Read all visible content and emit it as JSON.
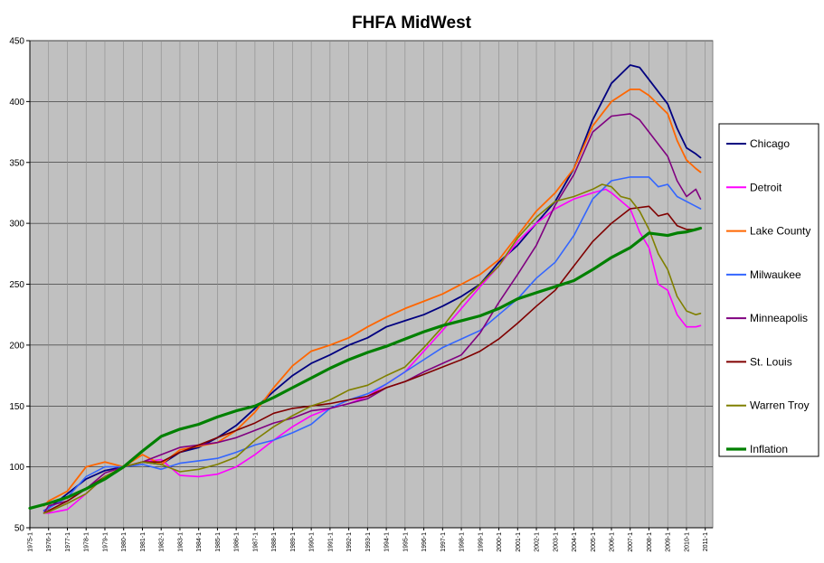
{
  "chart_data": {
    "type": "line",
    "title": "FHFA MidWest",
    "xlabel": "",
    "ylabel": "",
    "ylim": [
      50,
      450
    ],
    "y_ticks": [
      50,
      100,
      150,
      200,
      250,
      300,
      350,
      400,
      450
    ],
    "x_tick_labels": [
      "1975-1",
      "1976-1",
      "1977-1",
      "1978-1",
      "1979-1",
      "1980-1",
      "1981-1",
      "1982-1",
      "1983-1",
      "1984-1",
      "1985-1",
      "1986-1",
      "1987-1",
      "1988-1",
      "1989-1",
      "1990-1",
      "1991-1",
      "1992-1",
      "1993-1",
      "1994-1",
      "1995-1",
      "1996-1",
      "1997-1",
      "1998-1",
      "1999-1",
      "2000-1",
      "2001-1",
      "2002-1",
      "2003-1",
      "2004-1",
      "2005-1",
      "2006-1",
      "2007-1",
      "2008-1",
      "2009-1",
      "2010-1",
      "2011-1"
    ],
    "xlim": [
      1975.0,
      2011.4
    ],
    "grid": true,
    "legend_position": "right",
    "background_color": "#c0c0c0",
    "series": [
      {
        "name": "Chicago",
        "color": "#000080",
        "width": 1.8,
        "x": [
          1975.75,
          1976,
          1977,
          1978,
          1979,
          1980,
          1981,
          1982,
          1983,
          1984,
          1985,
          1986,
          1987,
          1988,
          1989,
          1990,
          1991,
          1992,
          1993,
          1994,
          1995,
          1996,
          1997,
          1998,
          1999,
          2000,
          2001,
          2002,
          2003,
          2004,
          2005,
          2006,
          2007,
          2007.5,
          2008,
          2009,
          2009.5,
          2010,
          2010.5,
          2010.75
        ],
        "y": [
          64,
          66,
          78,
          90,
          97,
          100,
          104,
          102,
          112,
          116,
          124,
          134,
          148,
          162,
          175,
          185,
          192,
          200,
          206,
          215,
          220,
          225,
          232,
          240,
          250,
          268,
          282,
          300,
          318,
          345,
          385,
          415,
          430,
          428,
          418,
          398,
          378,
          362,
          357,
          354
        ]
      },
      {
        "name": "Detroit",
        "color": "#ff00ff",
        "width": 1.6,
        "x": [
          1975.75,
          1976,
          1977,
          1978,
          1979,
          1980,
          1981,
          1982,
          1983,
          1984,
          1985,
          1986,
          1987,
          1988,
          1989,
          1990,
          1991,
          1992,
          1993,
          1994,
          1995,
          1996,
          1997,
          1998,
          1999,
          2000,
          2001,
          2002,
          2003,
          2004,
          2005,
          2005.7,
          2006,
          2007,
          2007.5,
          2008,
          2008.5,
          2009,
          2009.5,
          2010,
          2010.5,
          2010.75
        ],
        "y": [
          62,
          62,
          65,
          78,
          92,
          100,
          104,
          106,
          93,
          92,
          94,
          100,
          110,
          122,
          133,
          142,
          148,
          152,
          158,
          168,
          178,
          195,
          212,
          230,
          248,
          265,
          285,
          300,
          312,
          320,
          325,
          328,
          325,
          312,
          293,
          280,
          250,
          245,
          225,
          215,
          215,
          216
        ]
      },
      {
        "name": "Lake County",
        "color": "#ff6600",
        "width": 1.8,
        "x": [
          1975.75,
          1976,
          1977,
          1978,
          1979,
          1980,
          1981,
          1982,
          1983,
          1984,
          1985,
          1986,
          1987,
          1988,
          1989,
          1990,
          1991,
          1992,
          1993,
          1994,
          1995,
          1996,
          1997,
          1998,
          1999,
          2000,
          2001,
          2002,
          2003,
          2004,
          2005,
          2006,
          2007,
          2007.5,
          2008,
          2009,
          2009.5,
          2010,
          2010.5,
          2010.75
        ],
        "y": [
          68,
          72,
          80,
          100,
          104,
          100,
          110,
          102,
          114,
          117,
          120,
          130,
          145,
          165,
          183,
          195,
          200,
          206,
          215,
          223,
          230,
          236,
          242,
          250,
          258,
          270,
          290,
          310,
          325,
          345,
          380,
          400,
          410,
          410,
          405,
          390,
          368,
          352,
          345,
          342
        ]
      },
      {
        "name": "Milwaukee",
        "color": "#3366ff",
        "width": 1.6,
        "x": [
          1975.75,
          1976,
          1977,
          1978,
          1979,
          1980,
          1981,
          1982,
          1983,
          1984,
          1985,
          1986,
          1987,
          1988,
          1989,
          1990,
          1991,
          1992,
          1993,
          1994,
          1995,
          1996,
          1997,
          1998,
          1999,
          2000,
          2001,
          2002,
          2003,
          2004,
          2005,
          2006,
          2007,
          2008,
          2008.5,
          2009,
          2009.5,
          2010,
          2010.5,
          2010.75
        ],
        "y": [
          64,
          66,
          75,
          92,
          100,
          100,
          102,
          98,
          103,
          105,
          107,
          112,
          118,
          122,
          128,
          135,
          148,
          155,
          160,
          168,
          178,
          188,
          198,
          205,
          212,
          225,
          238,
          255,
          268,
          290,
          320,
          335,
          338,
          338,
          330,
          332,
          322,
          318,
          314,
          312
        ]
      },
      {
        "name": "Minneapolis",
        "color": "#800080",
        "width": 1.6,
        "x": [
          1975.75,
          1976,
          1977,
          1978,
          1979,
          1980,
          1981,
          1982,
          1983,
          1984,
          1985,
          1986,
          1987,
          1988,
          1989,
          1990,
          1991,
          1992,
          1993,
          1994,
          1995,
          1996,
          1997,
          1998,
          1999,
          2000,
          2001,
          2002,
          2003,
          2004,
          2005,
          2006,
          2007,
          2007.5,
          2008,
          2009,
          2009.5,
          2010,
          2010.5,
          2010.75
        ],
        "y": [
          62,
          68,
          72,
          82,
          95,
          100,
          104,
          110,
          116,
          118,
          120,
          124,
          130,
          136,
          140,
          146,
          148,
          152,
          156,
          165,
          170,
          178,
          185,
          192,
          210,
          235,
          258,
          282,
          315,
          340,
          375,
          388,
          390,
          385,
          375,
          355,
          335,
          322,
          328,
          320
        ]
      },
      {
        "name": "St. Louis",
        "color": "#800000",
        "width": 1.6,
        "x": [
          1975.75,
          1976,
          1977,
          1978,
          1979,
          1980,
          1981,
          1982,
          1983,
          1984,
          1985,
          1986,
          1987,
          1988,
          1989,
          1990,
          1991,
          1992,
          1993,
          1994,
          1995,
          1996,
          1997,
          1998,
          1999,
          2000,
          2001,
          2002,
          2003,
          2004,
          2005,
          2006,
          2007,
          2008,
          2008.5,
          2009,
          2009.5,
          2010,
          2010.5,
          2010.75
        ],
        "y": [
          62,
          64,
          72,
          82,
          92,
          100,
          104,
          104,
          112,
          118,
          124,
          130,
          136,
          144,
          148,
          150,
          152,
          155,
          158,
          165,
          170,
          176,
          182,
          188,
          195,
          205,
          218,
          232,
          245,
          265,
          285,
          300,
          312,
          314,
          306,
          308,
          298,
          295,
          295,
          296
        ]
      },
      {
        "name": "Warren Troy",
        "color": "#808000",
        "width": 1.6,
        "x": [
          1975.75,
          1976,
          1977,
          1978,
          1979,
          1980,
          1981,
          1982,
          1983,
          1984,
          1985,
          1986,
          1987,
          1988,
          1989,
          1990,
          1991,
          1992,
          1993,
          1994,
          1995,
          1996,
          1997,
          1998,
          1999,
          2000,
          2001,
          2002,
          2003,
          2004,
          2005,
          2005.5,
          2006,
          2006.5,
          2007,
          2007.5,
          2008,
          2008.5,
          2009,
          2009.5,
          2010,
          2010.5,
          2010.75
        ],
        "y": [
          62,
          63,
          70,
          78,
          92,
          100,
          104,
          102,
          96,
          98,
          102,
          108,
          122,
          133,
          142,
          150,
          155,
          163,
          167,
          175,
          182,
          198,
          215,
          235,
          250,
          265,
          288,
          305,
          318,
          322,
          328,
          332,
          330,
          322,
          320,
          310,
          295,
          275,
          262,
          240,
          228,
          225,
          226
        ]
      },
      {
        "name": "Inflation",
        "color": "#008000",
        "width": 3.2,
        "x": [
          1975,
          1976,
          1977,
          1978,
          1979,
          1980,
          1981,
          1982,
          1983,
          1984,
          1985,
          1986,
          1987,
          1988,
          1989,
          1990,
          1991,
          1992,
          1993,
          1994,
          1995,
          1996,
          1997,
          1998,
          1999,
          2000,
          2001,
          2002,
          2003,
          2004,
          2005,
          2006,
          2007,
          2008,
          2009,
          2009.5,
          2010,
          2010.5,
          2010.75
        ],
        "y": [
          66,
          70,
          75,
          82,
          90,
          100,
          113,
          125,
          131,
          135,
          141,
          146,
          150,
          157,
          165,
          173,
          181,
          188,
          194,
          199,
          205,
          211,
          216,
          220,
          224,
          230,
          238,
          243,
          248,
          253,
          262,
          272,
          280,
          292,
          290,
          292,
          293,
          295,
          296
        ]
      }
    ]
  }
}
